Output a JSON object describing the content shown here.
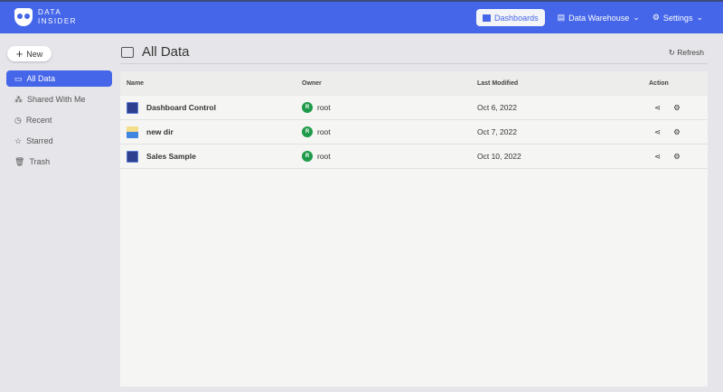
{
  "header": {
    "logo": "DATA INSIDER",
    "logo_line1": "DATA",
    "logo_line2": "INSIDER",
    "nav": [
      {
        "label": "Dashboards",
        "icon": "dashboard-icon"
      },
      {
        "label": "Data Warehouse",
        "icon": "database-icon"
      },
      {
        "label": "Settings",
        "icon": "gear-icon"
      }
    ],
    "accent": "#4566e8"
  },
  "sidebar": {
    "new_label": "New",
    "items": [
      {
        "label": "All Data",
        "icon": "folder-icon"
      },
      {
        "label": "Shared With Me",
        "icon": "share-icon"
      },
      {
        "label": "Recent",
        "icon": "clock-icon"
      },
      {
        "label": "Starred",
        "icon": "star-icon"
      },
      {
        "label": "Trash",
        "icon": "trash-icon"
      }
    ]
  },
  "main": {
    "title": "All Data",
    "refresh_label": "Refresh",
    "columns": [
      "Name",
      "Owner",
      "Last Modified",
      "Action"
    ],
    "rows": [
      {
        "name": "Dashboard Control",
        "type": "dashboard",
        "owner_initial": "R",
        "owner": "root",
        "modified": "Oct 6, 2022"
      },
      {
        "name": "new dir",
        "type": "folder",
        "owner_initial": "R",
        "owner": "root",
        "modified": "Oct 7, 2022"
      },
      {
        "name": "Sales Sample",
        "type": "dashboard",
        "owner_initial": "R",
        "owner": "root",
        "modified": "Oct 10, 2022"
      }
    ]
  }
}
